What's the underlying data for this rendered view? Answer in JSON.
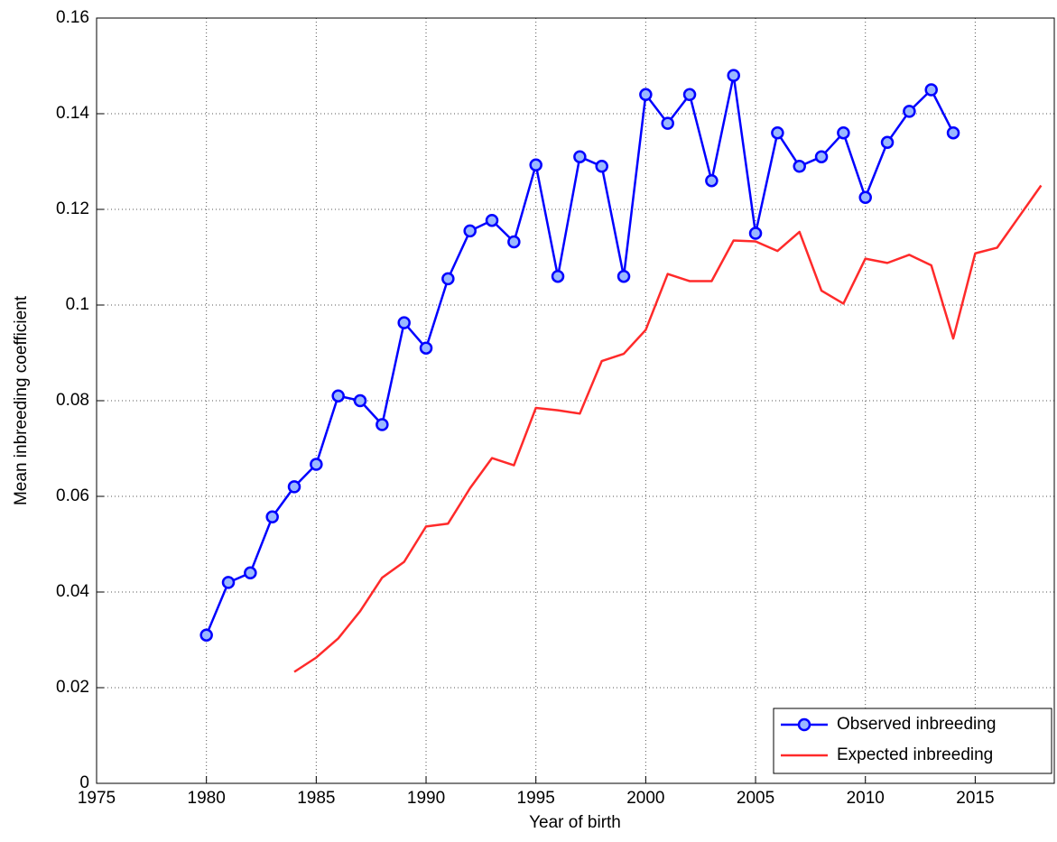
{
  "chart_data": {
    "type": "line",
    "xlabel": "Year of birth",
    "ylabel": "Mean inbreeding coefficient",
    "x": [
      1980,
      1981,
      1982,
      1983,
      1984,
      1985,
      1986,
      1987,
      1988,
      1989,
      1990,
      1991,
      1992,
      1993,
      1994,
      1995,
      1996,
      1997,
      1998,
      1999,
      2000,
      2001,
      2002,
      2003,
      2004,
      2005,
      2006,
      2007,
      2008,
      2009,
      2010,
      2011,
      2012,
      2013,
      2014,
      2015,
      2016,
      2017,
      2018
    ],
    "series": [
      {
        "name": "Observed inbreeding",
        "color": "#0000ff",
        "marker": "circle",
        "values": [
          0.031,
          0.042,
          0.044,
          0.0557,
          0.062,
          0.0667,
          0.081,
          0.08,
          0.075,
          0.0963,
          0.091,
          0.1055,
          0.1155,
          0.1177,
          0.1132,
          0.1293,
          0.106,
          0.131,
          0.129,
          0.106,
          0.144,
          0.138,
          0.144,
          0.126,
          0.148,
          0.115,
          0.136,
          0.129,
          0.131,
          0.136,
          0.1225,
          0.134,
          0.1405,
          0.145,
          0.136,
          null,
          null,
          null,
          null
        ]
      },
      {
        "name": "Expected inbreeding",
        "color": "#ff2a2a",
        "marker": "none",
        "values": [
          null,
          null,
          null,
          null,
          0.0233,
          0.0263,
          0.0303,
          0.036,
          0.043,
          0.0463,
          0.0537,
          0.0543,
          0.0617,
          0.068,
          0.0665,
          0.0785,
          0.078,
          0.0773,
          0.0883,
          0.0898,
          0.0948,
          0.1065,
          0.105,
          0.105,
          0.1135,
          0.1133,
          0.1113,
          0.1153,
          0.103,
          0.1003,
          0.1097,
          0.1088,
          0.1105,
          0.1083,
          0.093,
          0.1108,
          0.112,
          0.1185,
          0.125
        ]
      }
    ],
    "xlim": [
      1975,
      2018.6
    ],
    "xticks": [
      1975,
      1980,
      1985,
      1990,
      1995,
      2000,
      2005,
      2010,
      2015
    ],
    "ylim": [
      0,
      0.16
    ],
    "yticks": [
      0,
      0.02,
      0.04,
      0.06,
      0.08,
      0.1,
      0.12,
      0.14,
      0.16
    ],
    "grid": true,
    "legend": "lower right"
  }
}
